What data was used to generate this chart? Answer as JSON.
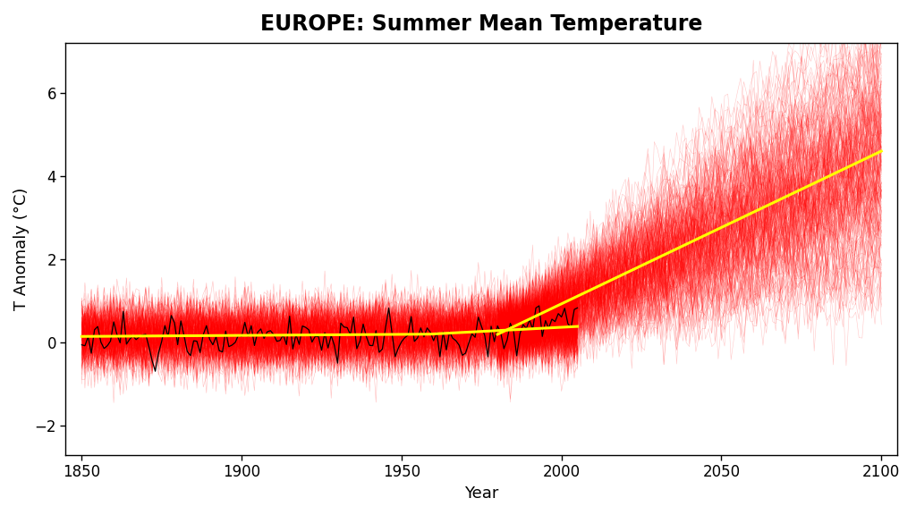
{
  "title": "EUROPE: Summer Mean Temperature",
  "xlabel": "Year",
  "ylabel": "T Anomaly (°C)",
  "ylabel_display": "T Anomaly (°C)",
  "xlim": [
    1845,
    2105
  ],
  "ylim": [
    -2.7,
    7.2
  ],
  "xticks": [
    1850,
    1900,
    1950,
    2000,
    2050,
    2100
  ],
  "yticks": [
    -2,
    0,
    2,
    4,
    6
  ],
  "hist_start": 1850,
  "hist_end": 2005,
  "proj_start": 1980,
  "proj_end": 2100,
  "n_ensemble_hist": 200,
  "n_ensemble_proj": 200,
  "bg_color": "#ffffff",
  "red_color": "#ff0000",
  "yellow_color": "#ffff00",
  "black_color": "#000000",
  "title_fontsize": 17,
  "label_fontsize": 13,
  "tick_fontsize": 12
}
